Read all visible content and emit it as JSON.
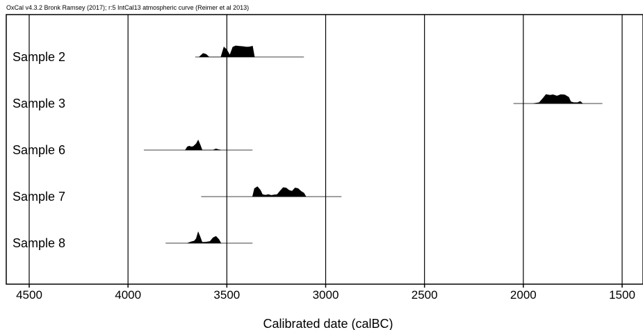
{
  "header": "OxCal v4.3.2 Bronk Ramsey (2017); r:5 IntCal13 atmospheric curve (Reimer et al 2013)",
  "chart_data": {
    "type": "area",
    "title": "",
    "xlabel": "Calibrated date (calBC)",
    "ylabel": "",
    "xlim": [
      4600,
      1450
    ],
    "x_reversed": true,
    "x_ticks": [
      4500,
      4000,
      3500,
      3000,
      2500,
      2000,
      1500
    ],
    "x_tick_labels": [
      "4500",
      "4000",
      "3500",
      "3000",
      "2500",
      "2000",
      "1500"
    ],
    "grid": true,
    "legend": "none",
    "samples": [
      {
        "name": "Sample 2",
        "range_bar": [
          3660,
          3110
        ],
        "distribution": [
          [
            3640,
            0
          ],
          [
            3620,
            0.2
          ],
          [
            3605,
            0.15
          ],
          [
            3590,
            0
          ],
          [
            3530,
            0
          ],
          [
            3515,
            0.55
          ],
          [
            3500,
            0.4
          ],
          [
            3485,
            0.1
          ],
          [
            3470,
            0.55
          ],
          [
            3455,
            0.62
          ],
          [
            3440,
            0.6
          ],
          [
            3420,
            0.58
          ],
          [
            3400,
            0.55
          ],
          [
            3385,
            0.56
          ],
          [
            3370,
            0.6
          ],
          [
            3360,
            0
          ]
        ]
      },
      {
        "name": "Sample 3",
        "range_bar": [
          2050,
          1600
        ],
        "distribution": [
          [
            1950,
            0
          ],
          [
            1920,
            0.05
          ],
          [
            1900,
            0.3
          ],
          [
            1885,
            0.5
          ],
          [
            1865,
            0.46
          ],
          [
            1850,
            0.49
          ],
          [
            1830,
            0.42
          ],
          [
            1810,
            0.5
          ],
          [
            1790,
            0.48
          ],
          [
            1770,
            0.35
          ],
          [
            1760,
            0.1
          ],
          [
            1745,
            0.05
          ],
          [
            1725,
            0.05
          ],
          [
            1712,
            0.12
          ],
          [
            1700,
            0
          ]
        ]
      },
      {
        "name": "Sample 6",
        "range_bar": [
          3920,
          3370
        ],
        "distribution": [
          [
            3710,
            0
          ],
          [
            3700,
            0.18
          ],
          [
            3690,
            0.22
          ],
          [
            3680,
            0.18
          ],
          [
            3670,
            0.2
          ],
          [
            3655,
            0.35
          ],
          [
            3645,
            0.55
          ],
          [
            3635,
            0.3
          ],
          [
            3625,
            0
          ],
          [
            3570,
            0
          ],
          [
            3555,
            0.07
          ],
          [
            3545,
            0.04
          ],
          [
            3530,
            0
          ]
        ]
      },
      {
        "name": "Sample 7",
        "range_bar": [
          3630,
          2920
        ],
        "distribution": [
          [
            3370,
            0
          ],
          [
            3360,
            0.45
          ],
          [
            3345,
            0.55
          ],
          [
            3330,
            0.35
          ],
          [
            3320,
            0.12
          ],
          [
            3305,
            0.08
          ],
          [
            3290,
            0.12
          ],
          [
            3275,
            0.07
          ],
          [
            3260,
            0.1
          ],
          [
            3245,
            0.12
          ],
          [
            3230,
            0.32
          ],
          [
            3215,
            0.5
          ],
          [
            3200,
            0.48
          ],
          [
            3185,
            0.35
          ],
          [
            3170,
            0.3
          ],
          [
            3155,
            0.48
          ],
          [
            3140,
            0.45
          ],
          [
            3125,
            0.3
          ],
          [
            3110,
            0.2
          ],
          [
            3100,
            0
          ]
        ]
      },
      {
        "name": "Sample 8",
        "range_bar": [
          3810,
          3370
        ],
        "distribution": [
          [
            3700,
            0
          ],
          [
            3680,
            0.08
          ],
          [
            3665,
            0.12
          ],
          [
            3655,
            0.25
          ],
          [
            3645,
            0.62
          ],
          [
            3635,
            0.35
          ],
          [
            3625,
            0.05
          ],
          [
            3605,
            0.06
          ],
          [
            3585,
            0.1
          ],
          [
            3570,
            0.3
          ],
          [
            3555,
            0.38
          ],
          [
            3540,
            0.2
          ],
          [
            3530,
            0
          ]
        ]
      }
    ]
  }
}
